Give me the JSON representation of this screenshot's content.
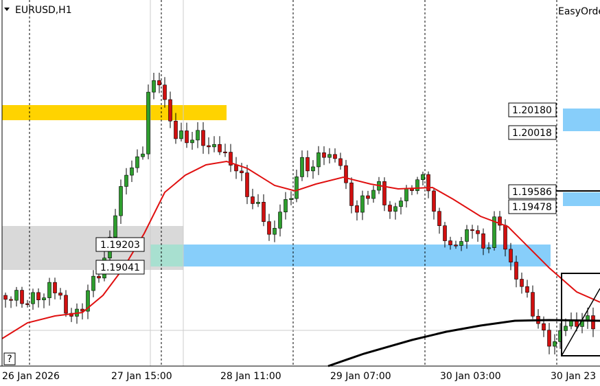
{
  "header": {
    "symbol": "EURUSD,H1",
    "panel": "EasyOrde"
  },
  "price_labels": {
    "right": [
      "1.20180",
      "1.20018",
      "1.19586",
      "1.19478"
    ],
    "left": [
      "1.19203",
      "1.19041"
    ]
  },
  "help": "?",
  "time_axis": [
    "26 Jan 2026",
    "27 Jan 15:00",
    "28 Jan 11:00",
    "29 Jan 07:00",
    "30 Jan 03:00",
    "30 Jan 23"
  ]
}
